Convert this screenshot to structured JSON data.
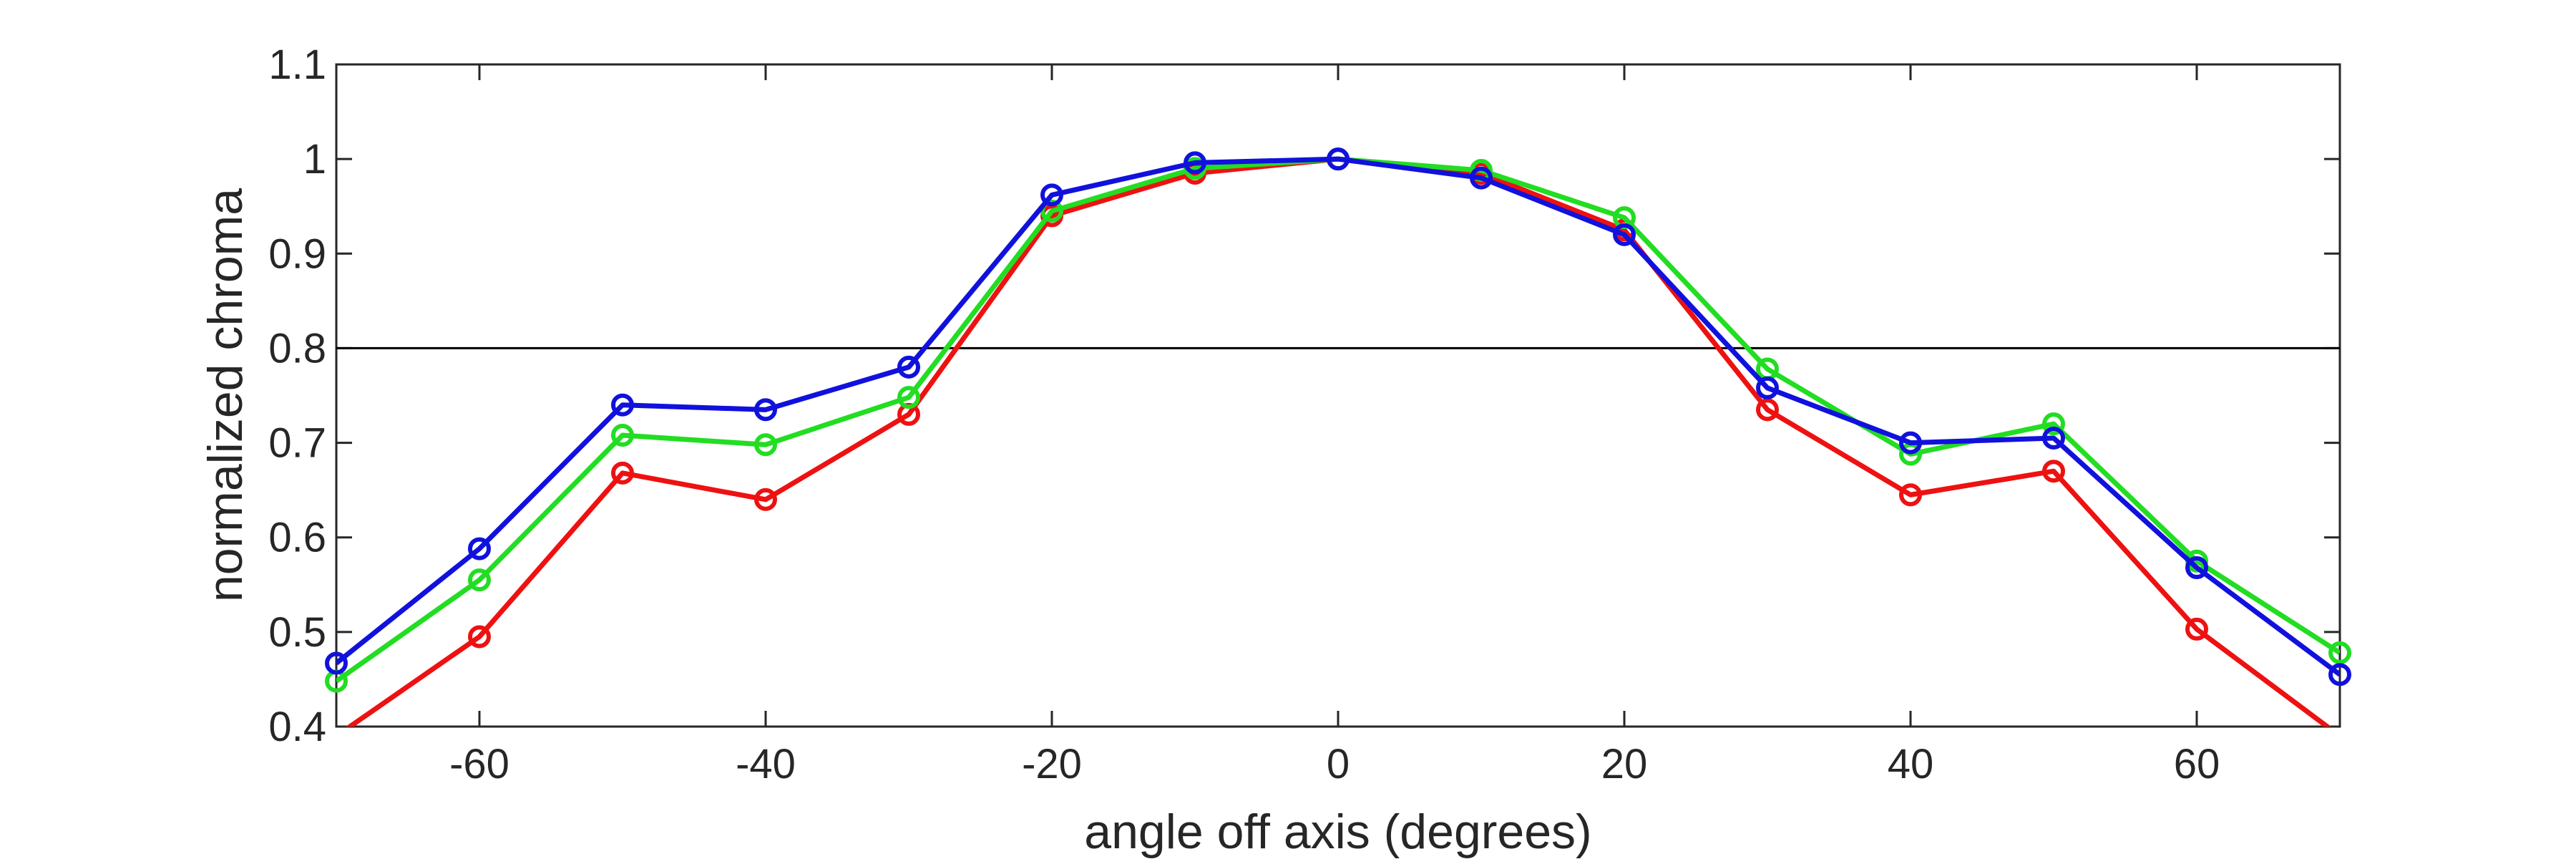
{
  "chart_data": {
    "type": "line",
    "title": "",
    "xlabel": "angle off axis (degrees)",
    "ylabel": "normalized chroma",
    "xlim": [
      -70,
      70
    ],
    "ylim": [
      0.4,
      1.1
    ],
    "xticks": [
      -60,
      -40,
      -20,
      0,
      20,
      40,
      60
    ],
    "yticks": [
      0.4,
      0.5,
      0.6,
      0.7,
      0.8,
      0.9,
      1,
      1.1
    ],
    "xtick_labels": [
      "-60",
      "-40",
      "-20",
      "0",
      "20",
      "40",
      "60"
    ],
    "ytick_labels": [
      "0.4",
      "0.5",
      "0.6",
      "0.7",
      "0.8",
      "0.9",
      "1",
      "1.1"
    ],
    "grid": false,
    "reference_line": {
      "y": 0.8,
      "color": "#000000"
    },
    "x": [
      -70,
      -60,
      -50,
      -40,
      -30,
      -20,
      -10,
      0,
      10,
      20,
      30,
      40,
      50,
      60,
      70
    ],
    "series": [
      {
        "color": "#ee1111",
        "values": [
          0.39,
          0.495,
          0.668,
          0.64,
          0.73,
          0.94,
          0.985,
          1.0,
          0.985,
          0.925,
          0.735,
          0.645,
          0.67,
          0.503,
          0.39
        ]
      },
      {
        "color": "#22dd22",
        "values": [
          0.448,
          0.555,
          0.708,
          0.698,
          0.748,
          0.945,
          0.99,
          1.0,
          0.988,
          0.938,
          0.778,
          0.688,
          0.72,
          0.575,
          0.478
        ]
      },
      {
        "color": "#1111dd",
        "values": [
          0.467,
          0.588,
          0.74,
          0.735,
          0.78,
          0.962,
          0.996,
          1.0,
          0.98,
          0.92,
          0.758,
          0.7,
          0.705,
          0.568,
          0.455
        ]
      }
    ]
  }
}
